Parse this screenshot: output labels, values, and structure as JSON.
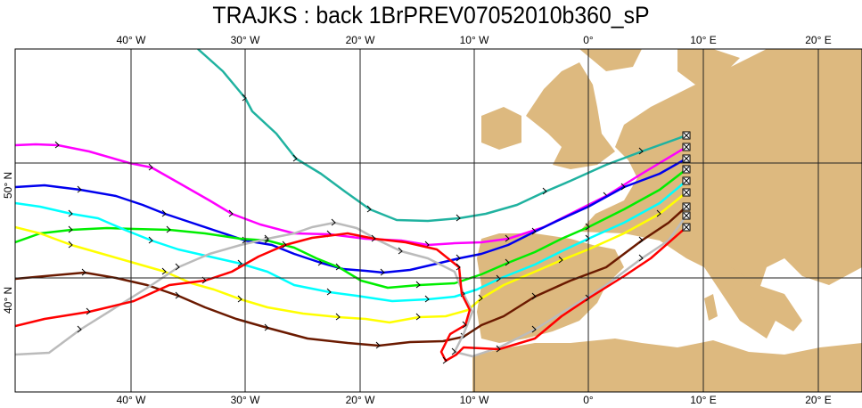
{
  "title": "TRAJKS : back 1BrPREV07052010b360_sP",
  "lon_labels": [
    "40° W",
    "30° W",
    "20° W",
    "10° W",
    "0°",
    "10° E",
    "20° E"
  ],
  "lat_labels": [
    "50° N",
    "40° N"
  ],
  "colors": {
    "land": "#DDB97F",
    "grid": "#222222"
  },
  "trajectories": [
    {
      "name": "teal",
      "color": "#20B2A0"
    },
    {
      "name": "magenta",
      "color": "#FF00FF"
    },
    {
      "name": "blue",
      "color": "#0000EE"
    },
    {
      "name": "green",
      "color": "#00EE00"
    },
    {
      "name": "cyan",
      "color": "#00FFFF"
    },
    {
      "name": "yellow",
      "color": "#FFFF00"
    },
    {
      "name": "brown",
      "color": "#6B1A00"
    },
    {
      "name": "grey",
      "color": "#BBBBBB"
    },
    {
      "name": "red",
      "color": "#FF0000"
    }
  ]
}
